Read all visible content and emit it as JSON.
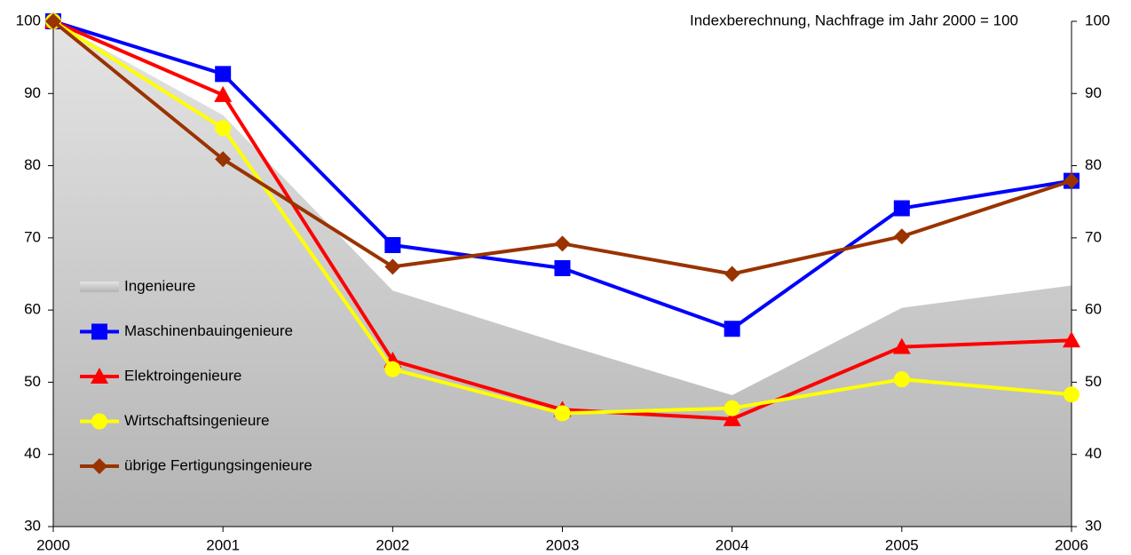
{
  "chart_data": {
    "type": "line",
    "annotation": "Indexberechnung, Nachfrage im Jahr 2000 = 100",
    "categories": [
      "2000",
      "2001",
      "2002",
      "2003",
      "2004",
      "2005",
      "2006"
    ],
    "ylim": [
      30,
      100
    ],
    "yticks": [
      30,
      40,
      50,
      60,
      70,
      80,
      90,
      100
    ],
    "y2lim": [
      30,
      100
    ],
    "y2ticks": [
      30,
      40,
      50,
      60,
      70,
      80,
      90,
      100
    ],
    "legend": "left",
    "series": [
      {
        "name": "Ingenieure",
        "color": "#c0c0c0",
        "style": "area",
        "values": [
          100,
          87,
          62.7,
          55.3,
          48.2,
          60.3,
          63.4
        ]
      },
      {
        "name": "Maschinenbauingenieure",
        "color": "#0000ff",
        "marker": "square",
        "values": [
          100,
          92.7,
          69,
          65.8,
          57.4,
          74.1,
          77.9
        ]
      },
      {
        "name": "Elektroingenieure",
        "color": "#ff0000",
        "marker": "triangle",
        "values": [
          100,
          89.8,
          53,
          46.2,
          44.9,
          54.9,
          55.8
        ]
      },
      {
        "name": "Wirtschaftsingenieure",
        "color": "#ffff00",
        "marker": "circle",
        "values": [
          100,
          85.2,
          51.8,
          45.7,
          46.4,
          50.4,
          48.3
        ]
      },
      {
        "name": "übrige Fertigungsingenieure",
        "color": "#993300",
        "marker": "diamond",
        "values": [
          100,
          80.9,
          66,
          69.2,
          65,
          70.2,
          77.9
        ]
      }
    ]
  }
}
